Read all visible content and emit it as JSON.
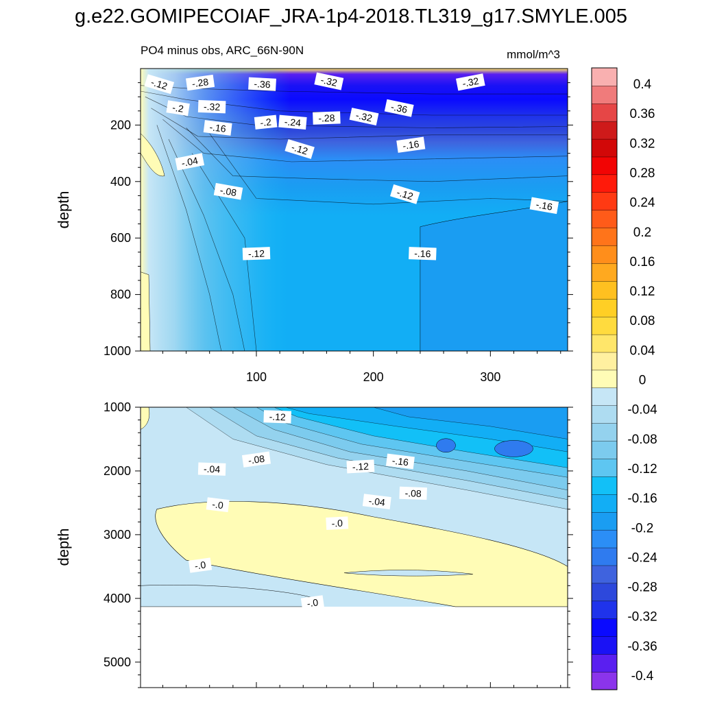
{
  "title": "g.e22.GOMIPECOIAF_JRA-1p4-2018.TL319_g17.SMYLE.005",
  "subtitle_left": "PO4 minus obs, ARC_66N-90N",
  "subtitle_right": "mmol/m^3",
  "chart_data": [
    {
      "type": "heatmap",
      "panel": "upper",
      "ylabel": "depth",
      "xlabel": "",
      "xlim": [
        1,
        366
      ],
      "ylim": [
        1000,
        0
      ],
      "y_reversed": true,
      "x_ticks": [
        100,
        200,
        300
      ],
      "x_tick_labels": [
        "100",
        "200",
        "300"
      ],
      "y_ticks": [
        200,
        400,
        600,
        800,
        1000
      ],
      "y_tick_labels": [
        "200",
        "400",
        "600",
        "800",
        "1000"
      ],
      "contour_labels": [
        {
          "text": "-.12",
          "x": 17,
          "y": 55
        },
        {
          "text": "-.28",
          "x": 52,
          "y": 50
        },
        {
          "text": "-.36",
          "x": 105,
          "y": 55
        },
        {
          "text": "-.32",
          "x": 162,
          "y": 45
        },
        {
          "text": "-.32",
          "x": 283,
          "y": 48
        },
        {
          "text": "-.2",
          "x": 33,
          "y": 140
        },
        {
          "text": "-.32",
          "x": 62,
          "y": 135
        },
        {
          "text": "-.36",
          "x": 222,
          "y": 140
        },
        {
          "text": "-.32",
          "x": 192,
          "y": 170
        },
        {
          "text": "-.28",
          "x": 160,
          "y": 175
        },
        {
          "text": "-.24",
          "x": 131,
          "y": 190
        },
        {
          "text": "-.2",
          "x": 108,
          "y": 190
        },
        {
          "text": "-.16",
          "x": 67,
          "y": 210
        },
        {
          "text": "-.16",
          "x": 232,
          "y": 270
        },
        {
          "text": "-.12",
          "x": 137,
          "y": 285
        },
        {
          "text": "-.04",
          "x": 43,
          "y": 330
        },
        {
          "text": "-.08",
          "x": 76,
          "y": 435
        },
        {
          "text": "-.12",
          "x": 227,
          "y": 445
        },
        {
          "text": "-.16",
          "x": 346,
          "y": 485
        },
        {
          "text": "-.12",
          "x": 100,
          "y": 655
        },
        {
          "text": "-.16",
          "x": 242,
          "y": 655
        }
      ]
    },
    {
      "type": "heatmap",
      "panel": "lower",
      "ylabel": "depth",
      "xlabel": "",
      "xlim": [
        1,
        366
      ],
      "ylim": [
        5400,
        1000
      ],
      "y_reversed": true,
      "data_bottom": 4130,
      "y_ticks": [
        1000,
        2000,
        3000,
        4000,
        5000
      ],
      "y_tick_labels": [
        "1000",
        "2000",
        "3000",
        "4000",
        "5000"
      ],
      "contour_labels": [
        {
          "text": "-.12",
          "x": 118,
          "y": 1150
        },
        {
          "text": "-.08",
          "x": 100,
          "y": 1820
        },
        {
          "text": "-.04",
          "x": 62,
          "y": 1970
        },
        {
          "text": "-.12",
          "x": 189,
          "y": 1930
        },
        {
          "text": "-.16",
          "x": 223,
          "y": 1850
        },
        {
          "text": "-.08",
          "x": 234,
          "y": 2350
        },
        {
          "text": "-.04",
          "x": 203,
          "y": 2480
        },
        {
          "text": "-.0",
          "x": 67,
          "y": 2530
        },
        {
          "text": "-.0",
          "x": 169,
          "y": 2820
        },
        {
          "text": "-.0",
          "x": 52,
          "y": 3480
        },
        {
          "text": "-.0",
          "x": 148,
          "y": 4070
        }
      ]
    }
  ],
  "colorbar": {
    "levels": [
      "-0.4",
      "-0.36",
      "-0.32",
      "-0.28",
      "-0.24",
      "-0.2",
      "-0.16",
      "-0.12",
      "-0.08",
      "-0.04",
      "0",
      "0.04",
      "0.08",
      "0.12",
      "0.16",
      "0.2",
      "0.24",
      "0.28",
      "0.32",
      "0.36",
      "0.4"
    ],
    "colors_bottom_to_top": [
      "#8B34EB",
      "#5A1FF0",
      "#1A12F5",
      "#0A0AFF",
      "#1F33EB",
      "#2D48DC",
      "#3F63DE",
      "#2F7BEF",
      "#2B8EF6",
      "#1A9DF2",
      "#12AEF5",
      "#12C0F7",
      "#5EC6F1",
      "#7CCBEE",
      "#94D2EE",
      "#AEDCF1",
      "#C6E6F6",
      "#FFFCB6",
      "#FFF0A0",
      "#FFE66A",
      "#FFDB3E",
      "#FFCF25",
      "#FFC020",
      "#FFA91F",
      "#FF8E1B",
      "#FF741A",
      "#FF5B19",
      "#FF3A13",
      "#FF1A0A",
      "#F20404",
      "#D20808",
      "#CE1A1A",
      "#E64646",
      "#F07B7B",
      "#F9B0B0"
    ]
  }
}
